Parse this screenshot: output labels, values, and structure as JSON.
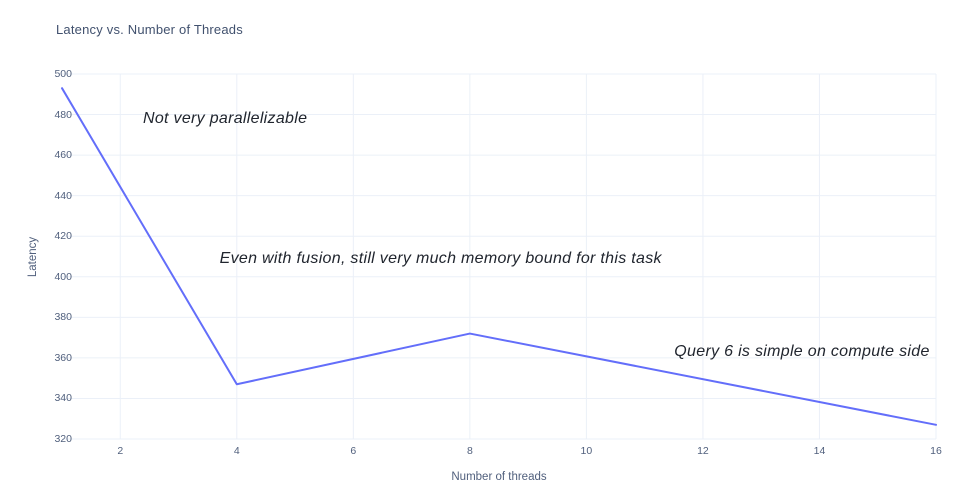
{
  "chart_data": {
    "type": "line",
    "title": "Latency vs. Number of Threads",
    "xlabel": "Number of threads",
    "ylabel": "Latency",
    "x": [
      1,
      4,
      8,
      16
    ],
    "y": [
      493,
      347,
      372,
      327
    ],
    "x_ticks": [
      2,
      4,
      6,
      8,
      10,
      12,
      14,
      16
    ],
    "y_ticks": [
      320,
      340,
      360,
      380,
      400,
      420,
      440,
      460,
      480,
      500
    ],
    "xlim": [
      1,
      16
    ],
    "ylim": [
      320,
      500
    ],
    "grid": true,
    "legend": false,
    "annotations": [
      {
        "text": "Not very parallelizable",
        "x": 3.8,
        "y": 478
      },
      {
        "text": "Even with fusion, still very much memory bound for this task",
        "x": 7.5,
        "y": 409
      },
      {
        "text": "Query 6 is simple on compute side",
        "x": 13.7,
        "y": 363
      }
    ]
  },
  "colors": {
    "line": "#636efa",
    "grid": "#ebf0f8",
    "title_text": "#41516e",
    "tick_text": "#51607d",
    "annotation_text": "#20252e",
    "background": "#ffffff"
  }
}
